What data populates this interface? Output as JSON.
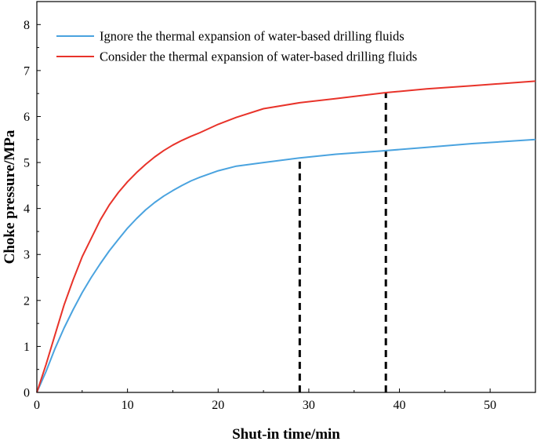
{
  "chart_data": {
    "type": "line",
    "xlabel": "Shut-in time/min",
    "ylabel": "Choke pressure/MPa",
    "xlim": [
      0,
      55
    ],
    "ylim": [
      0,
      8.5
    ],
    "xticks": [
      0,
      10,
      20,
      30,
      40,
      50
    ],
    "yticks": [
      0,
      1,
      2,
      3,
      4,
      5,
      6,
      7,
      8
    ],
    "grid": false,
    "legend_position": "top-left",
    "series": [
      {
        "name": "Ignore the thermal expansion of water-based drilling fluids",
        "color": "#4aa3df",
        "x": [
          0,
          1,
          2,
          3,
          4,
          5,
          6,
          7,
          8,
          9,
          10,
          11,
          12,
          13,
          14,
          15,
          16,
          17,
          18,
          20,
          22,
          25,
          29,
          33,
          38,
          43,
          48,
          55
        ],
        "y": [
          0,
          0.45,
          0.95,
          1.4,
          1.8,
          2.17,
          2.5,
          2.8,
          3.08,
          3.33,
          3.57,
          3.78,
          3.97,
          4.13,
          4.27,
          4.39,
          4.5,
          4.6,
          4.68,
          4.82,
          4.92,
          5.0,
          5.1,
          5.18,
          5.25,
          5.33,
          5.41,
          5.5
        ]
      },
      {
        "name": "Consider the thermal expansion of water-based drilling fluids",
        "color": "#e8332a",
        "x": [
          0,
          1,
          2,
          3,
          4,
          5,
          6,
          7,
          8,
          9,
          10,
          11,
          12,
          13,
          14,
          15,
          16,
          17,
          18,
          20,
          22,
          25,
          29,
          33,
          38.5,
          43,
          48,
          55
        ],
        "y": [
          0,
          0.6,
          1.25,
          1.9,
          2.45,
          2.95,
          3.35,
          3.75,
          4.08,
          4.35,
          4.58,
          4.78,
          4.96,
          5.12,
          5.26,
          5.38,
          5.48,
          5.57,
          5.65,
          5.83,
          5.98,
          6.17,
          6.3,
          6.39,
          6.52,
          6.6,
          6.67,
          6.77
        ]
      }
    ],
    "annotations": [
      {
        "type": "vline-dashed",
        "x": 29,
        "y_top": 5.1,
        "color": "#000000"
      },
      {
        "type": "vline-dashed",
        "x": 38.5,
        "y_top": 6.52,
        "color": "#000000"
      }
    ]
  }
}
